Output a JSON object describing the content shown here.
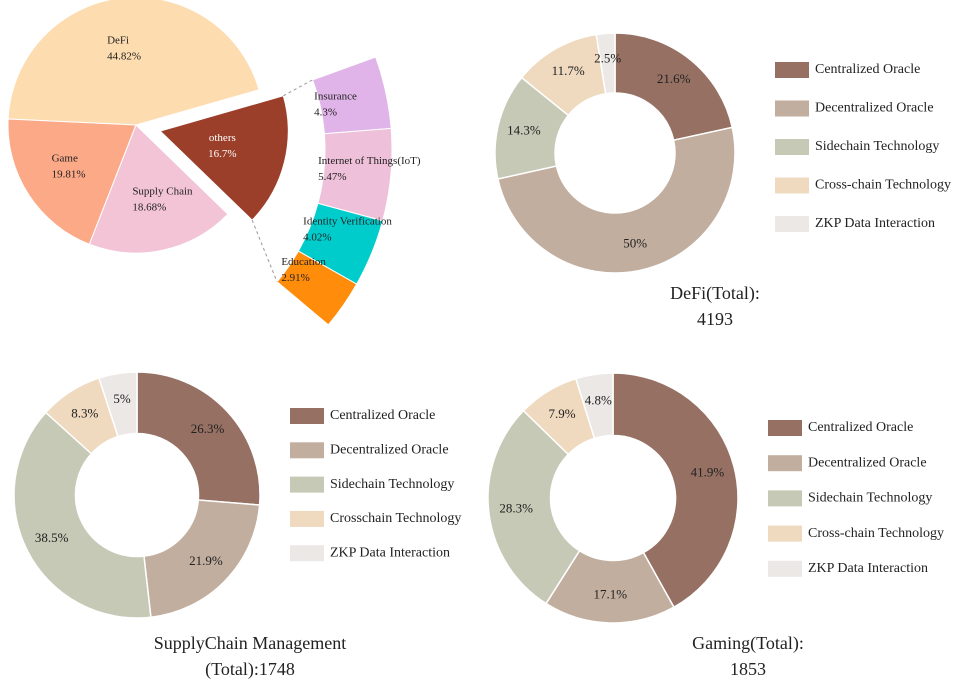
{
  "chart_data": [
    {
      "type": "pie",
      "categories": [
        "DeFi",
        "Game",
        "Supply Chain",
        "others"
      ],
      "values": [
        44.82,
        19.81,
        18.68,
        16.7
      ],
      "value_labels": [
        "44.82%",
        "19.81%",
        "18.68%",
        "16.7%"
      ],
      "colors": [
        "#fddcb0",
        "#fca987",
        "#f2c4d6",
        "#9b3f2a"
      ]
    },
    {
      "type": "breakdown",
      "categories": [
        "Insurance",
        "Internet of Things(IoT)",
        "Identity Verification",
        "Education"
      ],
      "values": [
        4.3,
        5.47,
        4.02,
        2.91
      ],
      "value_labels": [
        "4.3%",
        "5.47%",
        "4.02%",
        "2.91%"
      ],
      "colors": [
        "#e0b4e8",
        "#efc0d9",
        "#00cccc",
        "#ff8c0a"
      ]
    },
    {
      "type": "donut",
      "title": [
        "DeFi(Total):",
        "4193"
      ],
      "categories": [
        "Centralized Oracle",
        "Decentralized Oracle",
        "Sidechain Technology",
        "Cross-chain Technology",
        "ZKP Data Interaction"
      ],
      "values": [
        21.6,
        50,
        14.3,
        11.7,
        2.5
      ],
      "value_labels": [
        "21.6%",
        "50%",
        "14.3%",
        "11.7%",
        "2.5%"
      ],
      "colors": [
        "#957063",
        "#c1ae9f",
        "#c5c9b5",
        "#efd9bf",
        "#ece8e6"
      ],
      "legend": "right"
    },
    {
      "type": "donut",
      "title": [
        "SupplyChain Management",
        "(Total):1748"
      ],
      "categories": [
        "Centralized Oracle",
        "Decentralized Oracle",
        "Sidechain Technology",
        "Crosschain Technology",
        "ZKP Data Interaction"
      ],
      "values": [
        26.3,
        21.9,
        38.5,
        8.3,
        5
      ],
      "value_labels": [
        "26.3%",
        "21.9%",
        "38.5%",
        "8.3%",
        "5%"
      ],
      "colors": [
        "#957063",
        "#c1ae9f",
        "#c5c9b5",
        "#efd9bf",
        "#ece8e6"
      ],
      "legend": "right"
    },
    {
      "type": "donut",
      "title": [
        "Gaming(Total):",
        "1853"
      ],
      "categories": [
        "Centralized Oracle",
        "Decentralized Oracle",
        "Sidechain Technology",
        "Cross-chain Technology",
        "ZKP Data Interaction"
      ],
      "values": [
        41.9,
        17.1,
        28.3,
        7.9,
        4.8
      ],
      "value_labels": [
        "41.9%",
        "17.1%",
        "28.3%",
        "7.9%",
        "4.8%"
      ],
      "colors": [
        "#957063",
        "#c1ae9f",
        "#c5c9b5",
        "#efd9bf",
        "#ece8e6"
      ],
      "legend": "right"
    }
  ]
}
